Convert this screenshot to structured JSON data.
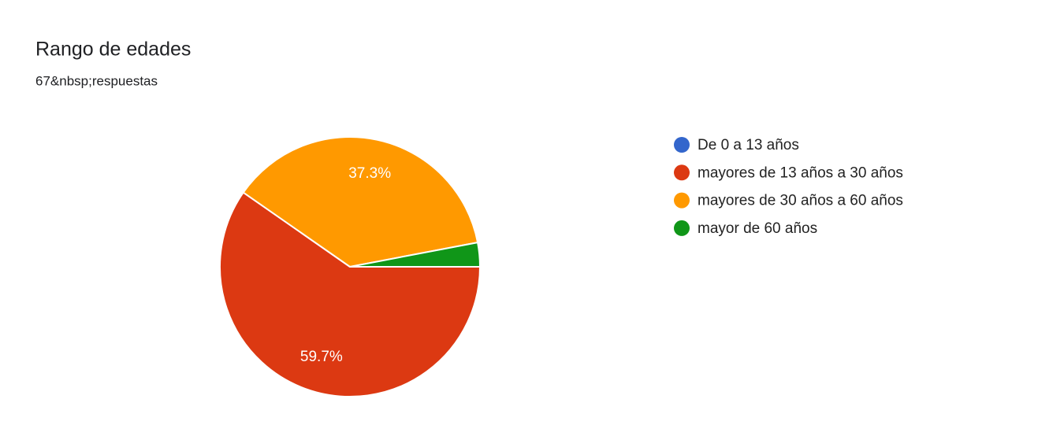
{
  "chart_data": {
    "type": "pie",
    "title": "Rango de edades",
    "subtitle": "67&nbsp;respuestas",
    "categories": [
      "De 0 a 13 años",
      "mayores de 13 años a 30 años",
      "mayores de 30 años a 60 años",
      "mayor de 60 años"
    ],
    "values": [
      0,
      59.7,
      37.3,
      3.0
    ],
    "value_labels": [
      null,
      "59.7%",
      "37.3%",
      null
    ],
    "colors": [
      "#3366cc",
      "#dc3912",
      "#ff9900",
      "#109618"
    ],
    "legend": "right"
  }
}
